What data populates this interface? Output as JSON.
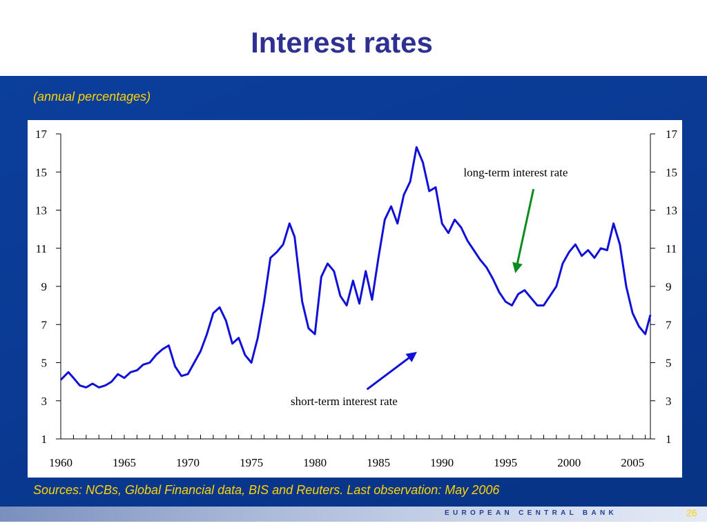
{
  "slide": {
    "title": "Interest rates",
    "subtitle": "(annual percentages)",
    "source_note": "Sources: NCBs, Global Financial data, BIS and Reuters. Last observation: May 2006",
    "footer_bank": "EUROPEAN CENTRAL BANK",
    "page_number": "26"
  },
  "colors": {
    "title": "#2e3191",
    "band": "#0a3a94",
    "accent_text": "#ffd400",
    "short_rate": "#1010d8",
    "long_rate": "#0b8a1e"
  },
  "chart_data": {
    "type": "line",
    "title": "",
    "xlabel": "",
    "ylabel": "",
    "xlim": [
      1960,
      2006.4
    ],
    "ylim": [
      1,
      17
    ],
    "x_ticks": [
      1960,
      1965,
      1970,
      1975,
      1980,
      1985,
      1990,
      1995,
      2000,
      2005
    ],
    "y_ticks": [
      1,
      3,
      5,
      7,
      9,
      11,
      13,
      15,
      17
    ],
    "grid": false,
    "series": [
      {
        "name": "short-term interest rate",
        "color": "#1010d8",
        "points": [
          [
            1960.0,
            4.1
          ],
          [
            1960.6,
            4.5
          ],
          [
            1961.0,
            4.2
          ],
          [
            1961.5,
            3.8
          ],
          [
            1962.0,
            3.7
          ],
          [
            1962.5,
            3.9
          ],
          [
            1963.0,
            3.7
          ],
          [
            1963.5,
            3.8
          ],
          [
            1964.0,
            4.0
          ],
          [
            1964.5,
            4.4
          ],
          [
            1965.0,
            4.2
          ],
          [
            1965.5,
            4.5
          ],
          [
            1966.0,
            4.6
          ],
          [
            1966.5,
            4.9
          ],
          [
            1967.0,
            5.0
          ],
          [
            1967.5,
            5.4
          ],
          [
            1968.0,
            5.7
          ],
          [
            1968.5,
            5.9
          ],
          [
            1969.0,
            4.8
          ],
          [
            1969.5,
            4.3
          ],
          [
            1970.0,
            4.4
          ],
          [
            1970.5,
            5.0
          ],
          [
            1971.0,
            5.6
          ],
          [
            1971.5,
            6.5
          ],
          [
            1972.0,
            7.6
          ],
          [
            1972.5,
            7.9
          ],
          [
            1973.0,
            7.2
          ],
          [
            1973.5,
            6.0
          ],
          [
            1974.0,
            6.3
          ],
          [
            1974.5,
            5.4
          ],
          [
            1975.0,
            5.0
          ],
          [
            1975.5,
            6.3
          ],
          [
            1976.0,
            8.2
          ],
          [
            1976.5,
            10.5
          ],
          [
            1977.0,
            10.8
          ],
          [
            1977.5,
            11.2
          ],
          [
            1978.0,
            12.3
          ],
          [
            1978.4,
            11.6
          ],
          [
            1979.0,
            8.2
          ],
          [
            1979.5,
            6.8
          ],
          [
            1980.0,
            6.5
          ],
          [
            1980.5,
            9.5
          ],
          [
            1981.0,
            10.2
          ],
          [
            1981.5,
            9.8
          ],
          [
            1982.0,
            8.5
          ],
          [
            1982.5,
            8.0
          ],
          [
            1983.0,
            9.3
          ],
          [
            1983.5,
            8.1
          ],
          [
            1984.0,
            9.8
          ],
          [
            1984.5,
            8.3
          ],
          [
            1985.0,
            10.5
          ],
          [
            1985.5,
            12.5
          ],
          [
            1986.0,
            13.2
          ],
          [
            1986.5,
            12.3
          ],
          [
            1987.0,
            13.8
          ],
          [
            1987.5,
            14.5
          ],
          [
            1988.0,
            16.3
          ],
          [
            1988.5,
            15.5
          ],
          [
            1989.0,
            14.0
          ],
          [
            1989.5,
            14.2
          ],
          [
            1990.0,
            12.3
          ],
          [
            1990.5,
            11.8
          ],
          [
            1991.0,
            12.5
          ],
          [
            1991.5,
            12.1
          ],
          [
            1992.0,
            11.4
          ],
          [
            1992.5,
            10.9
          ],
          [
            1993.0,
            10.4
          ],
          [
            1993.5,
            10.0
          ],
          [
            1994.0,
            9.4
          ],
          [
            1994.5,
            8.7
          ],
          [
            1995.0,
            8.2
          ],
          [
            1995.5,
            8.0
          ],
          [
            1996.0,
            8.6
          ],
          [
            1996.5,
            8.8
          ],
          [
            1997.0,
            8.4
          ],
          [
            1997.5,
            8.0
          ],
          [
            1998.0,
            8.0
          ],
          [
            1998.5,
            8.5
          ],
          [
            1999.0,
            9.0
          ],
          [
            1999.5,
            10.2
          ],
          [
            2000.0,
            10.8
          ],
          [
            2000.5,
            11.2
          ],
          [
            2001.0,
            10.6
          ],
          [
            2001.5,
            10.9
          ],
          [
            2002.0,
            10.5
          ],
          [
            2002.5,
            11.0
          ],
          [
            2003.0,
            10.9
          ],
          [
            2003.5,
            12.3
          ],
          [
            2004.0,
            11.2
          ],
          [
            2004.5,
            9.0
          ],
          [
            2005.0,
            7.6
          ],
          [
            2005.5,
            6.9
          ],
          [
            2006.0,
            6.5
          ],
          [
            2006.4,
            7.5
          ]
        ]
      },
      {
        "name": "long-term interest rate",
        "color": "#0b8a1e",
        "points": []
      }
    ],
    "annotations": [
      {
        "text": "long-term interest rate",
        "x": 1995.8,
        "y": 15.0
      },
      {
        "text": "short-term interest rate",
        "x": 1982.3,
        "y": 3.0
      }
    ]
  }
}
